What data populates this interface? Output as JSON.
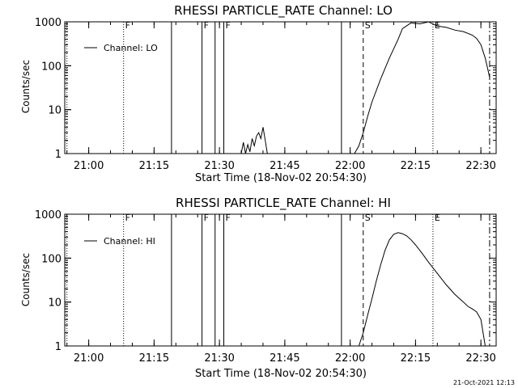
{
  "chart_data": [
    {
      "type": "line",
      "title": "RHESSI PARTICLE_RATE Channel: LO",
      "xlabel": "Start Time (18-Nov-02 20:54:30)",
      "ylabel": "Counts/sec",
      "yscale": "log",
      "ylim": [
        1,
        1000
      ],
      "xlim": [
        "20:54:30",
        "22:33:30"
      ],
      "x_ticks": [
        "21:00",
        "21:15",
        "21:30",
        "21:45",
        "22:00",
        "22:15",
        "22:30"
      ],
      "y_ticks": [
        "1",
        "10",
        "100",
        "1000"
      ],
      "legend": "Channel: LO",
      "legend_position": "top-left",
      "markers": [
        {
          "time": "20:55:00",
          "label": "",
          "style": "dotted"
        },
        {
          "time": "21:08:00",
          "label": "F",
          "style": "dotted"
        },
        {
          "time": "21:19:00",
          "label": "",
          "style": "solid"
        },
        {
          "time": "21:26:00",
          "label": "F",
          "style": "solid"
        },
        {
          "time": "21:29:00",
          "label": "",
          "style": "solid"
        },
        {
          "time": "21:31:00",
          "label": "F",
          "style": "solid"
        },
        {
          "time": "21:58:00",
          "label": "",
          "style": "solid"
        },
        {
          "time": "22:03:00",
          "label": "S",
          "style": "dashed"
        },
        {
          "time": "22:19:00",
          "label": "E",
          "style": "dotted"
        },
        {
          "time": "22:32:00",
          "label": "",
          "style": "dashdot"
        }
      ],
      "series": [
        {
          "x": [
            "21:35:00",
            "21:35:30",
            "21:36:00",
            "21:36:30",
            "21:37:00",
            "21:37:30",
            "21:38:00",
            "21:38:30",
            "21:39:00",
            "21:39:30",
            "21:40:00",
            "21:40:30",
            "21:41:00"
          ],
          "values": [
            1,
            1.8,
            1,
            1.6,
            1.1,
            2.2,
            1.5,
            2.5,
            3,
            2.2,
            4,
            2,
            1
          ]
        },
        {
          "x": [
            "22:01:00",
            "22:02:00",
            "22:03:00",
            "22:04:00",
            "22:05:00",
            "22:07:00",
            "22:09:00",
            "22:11:00",
            "22:12:00",
            "22:14:00",
            "22:16:00",
            "22:18:00",
            "22:20:00",
            "22:22:00",
            "22:24:00",
            "22:26:00",
            "22:28:00",
            "22:29:00",
            "22:30:00",
            "22:31:00",
            "22:32:00"
          ],
          "values": [
            1,
            1.5,
            3,
            7,
            15,
            50,
            150,
            400,
            700,
            950,
            900,
            1000,
            800,
            750,
            650,
            600,
            500,
            420,
            300,
            150,
            55
          ]
        }
      ]
    },
    {
      "type": "line",
      "title": "RHESSI PARTICLE_RATE Channel: HI",
      "xlabel": "Start Time (18-Nov-02 20:54:30)",
      "ylabel": "Counts/sec",
      "yscale": "log",
      "ylim": [
        1,
        1000
      ],
      "xlim": [
        "20:54:30",
        "22:33:30"
      ],
      "x_ticks": [
        "21:00",
        "21:15",
        "21:30",
        "21:45",
        "22:00",
        "22:15",
        "22:30"
      ],
      "y_ticks": [
        "1",
        "10",
        "100",
        "1000"
      ],
      "legend": "Channel: HI",
      "legend_position": "top-left",
      "markers": [
        {
          "time": "20:55:00",
          "label": "",
          "style": "dotted"
        },
        {
          "time": "21:08:00",
          "label": "F",
          "style": "dotted"
        },
        {
          "time": "21:19:00",
          "label": "",
          "style": "solid"
        },
        {
          "time": "21:26:00",
          "label": "F",
          "style": "solid"
        },
        {
          "time": "21:29:00",
          "label": "",
          "style": "solid"
        },
        {
          "time": "21:31:00",
          "label": "F",
          "style": "solid"
        },
        {
          "time": "21:58:00",
          "label": "",
          "style": "solid"
        },
        {
          "time": "22:03:00",
          "label": "S",
          "style": "dashed"
        },
        {
          "time": "22:19:00",
          "label": "E",
          "style": "dotted"
        },
        {
          "time": "22:32:00",
          "label": "",
          "style": "dashdot"
        }
      ],
      "series": [
        {
          "x": [
            "22:02:00",
            "22:03:00",
            "22:04:00",
            "22:05:00",
            "22:06:00",
            "22:07:00",
            "22:08:00",
            "22:09:00",
            "22:10:00",
            "22:11:00",
            "22:12:00",
            "22:13:00",
            "22:14:00",
            "22:15:00",
            "22:16:00",
            "22:17:00",
            "22:18:00",
            "22:20:00",
            "22:22:00",
            "22:24:00",
            "22:26:00",
            "22:27:00",
            "22:28:00",
            "22:29:00",
            "22:30:00",
            "22:31:00"
          ],
          "values": [
            1,
            2,
            5,
            12,
            30,
            70,
            150,
            260,
            350,
            380,
            360,
            320,
            260,
            200,
            150,
            110,
            80,
            45,
            25,
            15,
            10,
            8,
            7,
            6,
            4,
            1
          ]
        }
      ]
    }
  ],
  "footer": {
    "date_stamp": "21-Oct-2021 12:13"
  }
}
